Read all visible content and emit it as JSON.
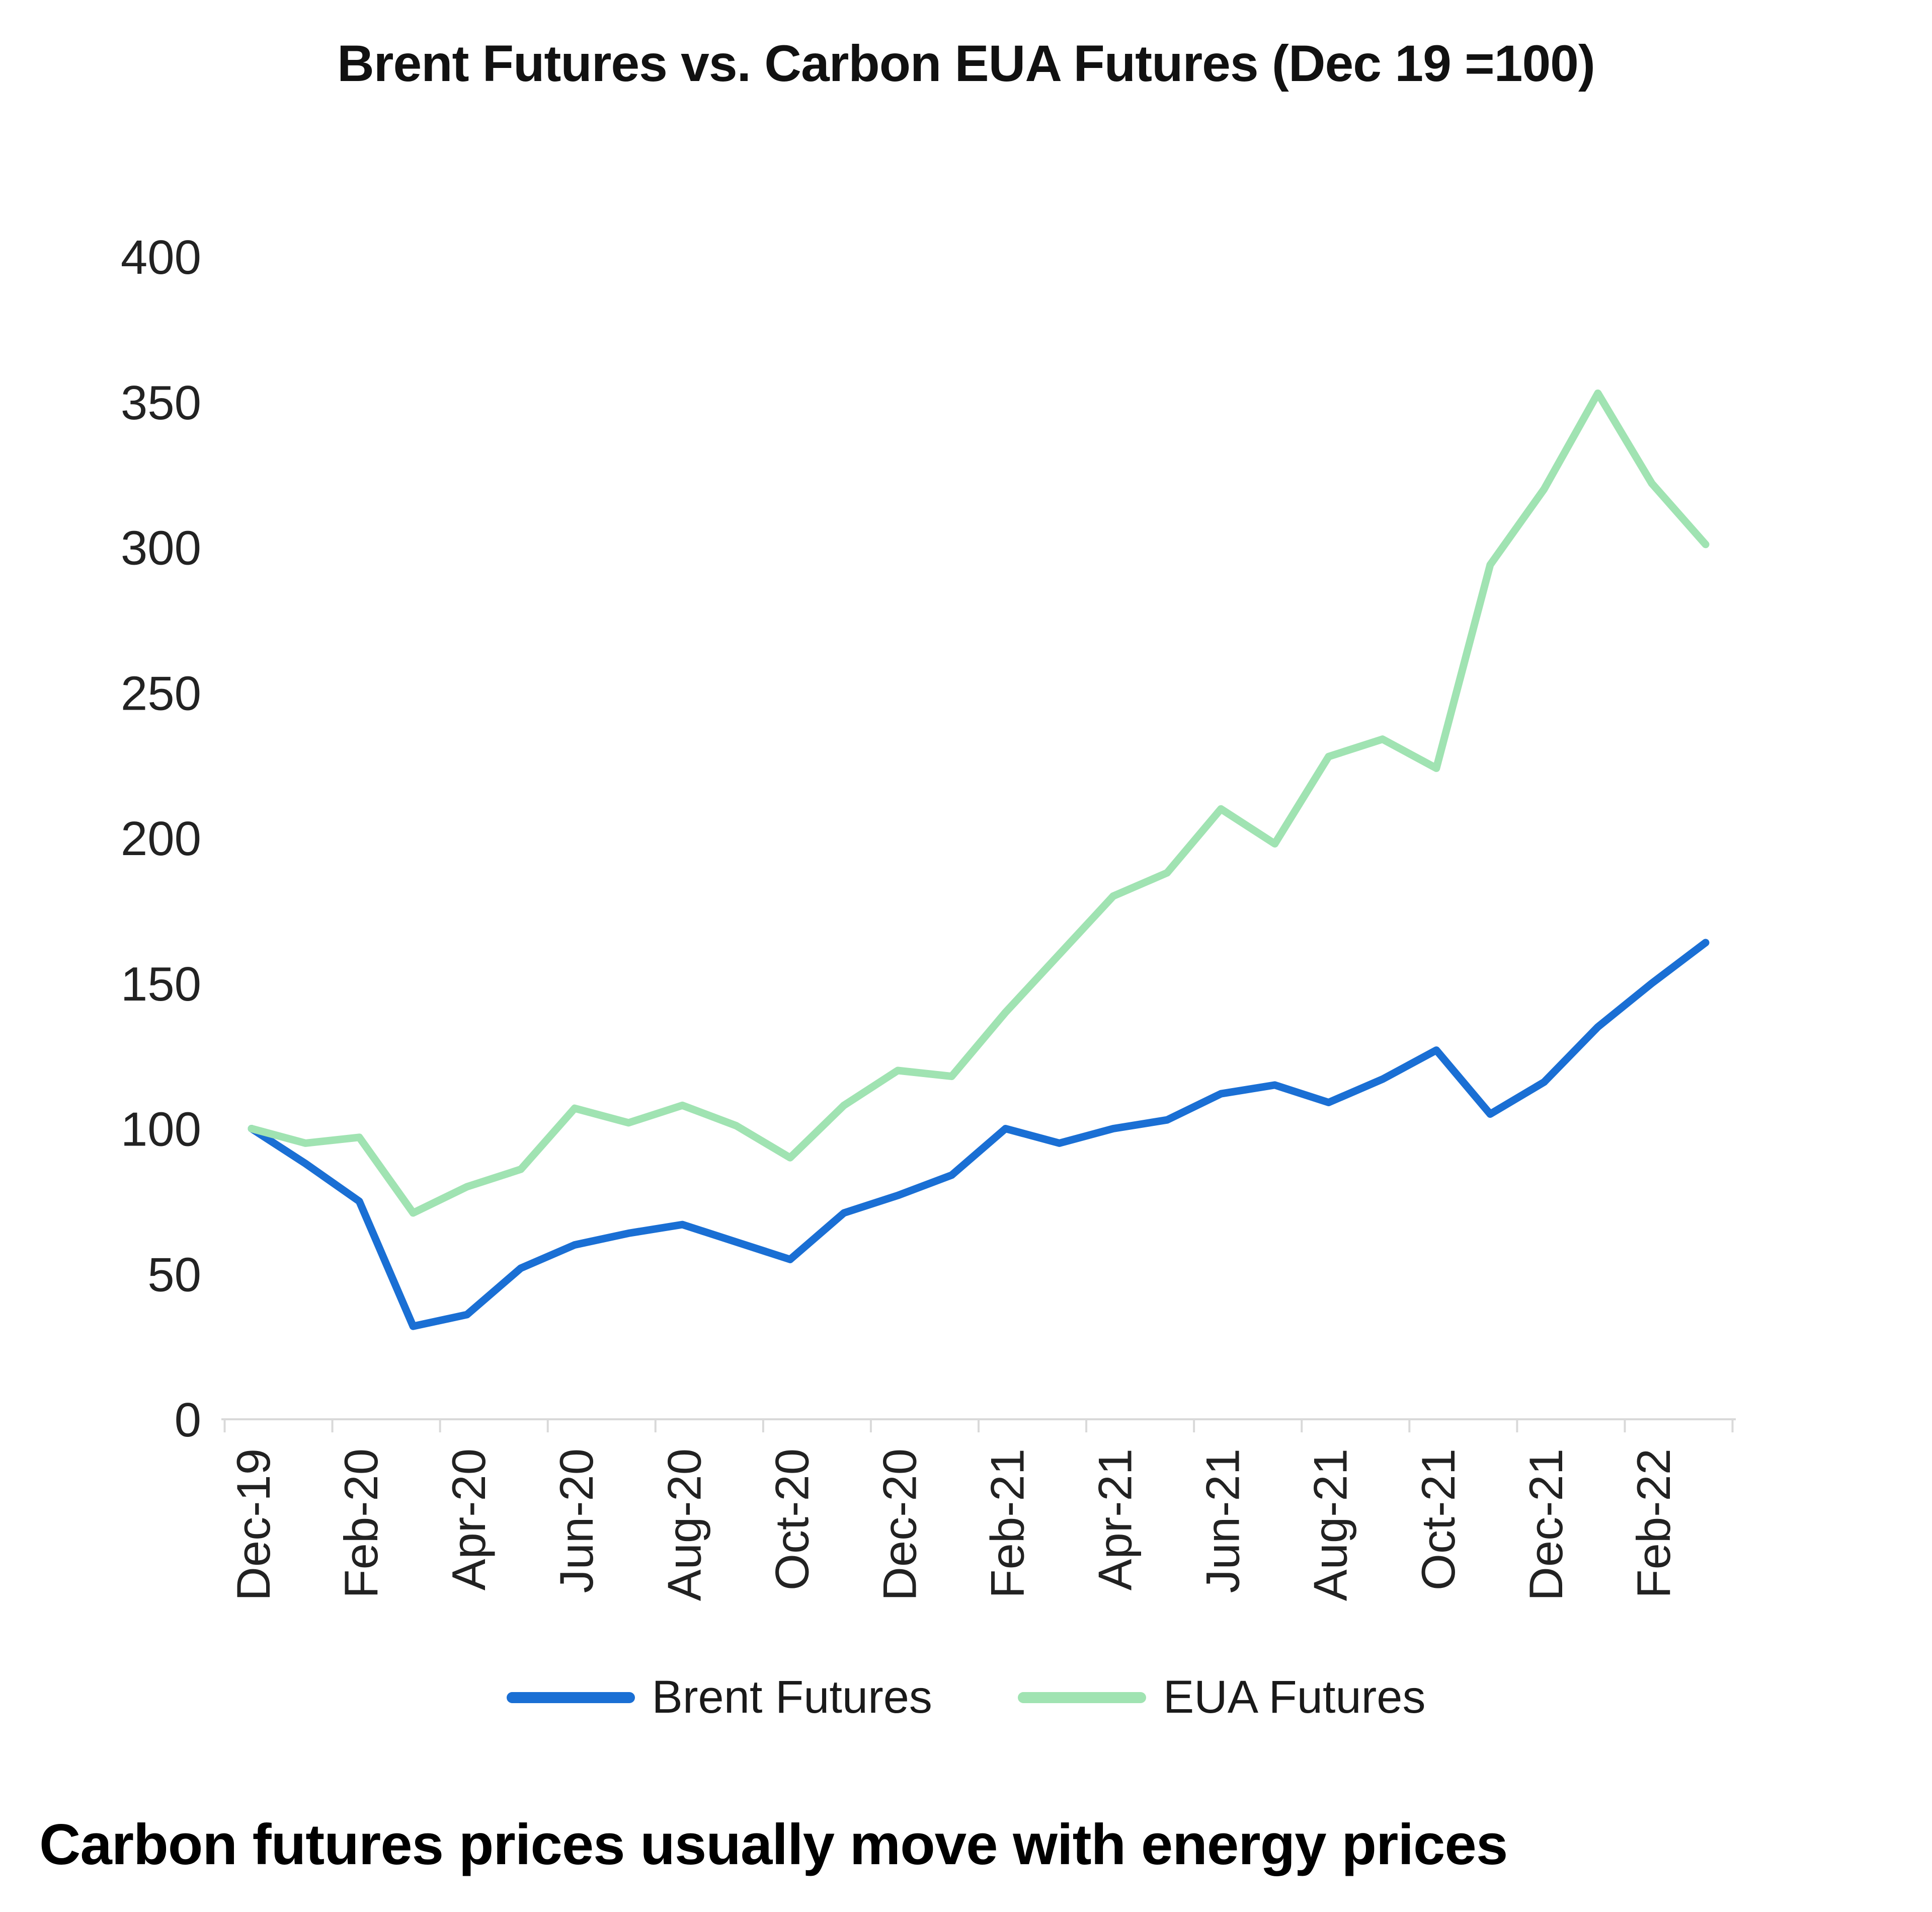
{
  "caption": "Carbon futures prices usually move with energy prices",
  "chart_data": {
    "type": "line",
    "title": "Brent Futures vs. Carbon EUA Futures (Dec 19 =100)",
    "xlabel": "",
    "ylabel": "",
    "ylim": [
      0,
      400
    ],
    "yticks": [
      0,
      50,
      100,
      150,
      200,
      250,
      300,
      350,
      400
    ],
    "grid": false,
    "legend_position": "bottom",
    "x": [
      "Dec-19",
      "Jan-20",
      "Feb-20",
      "Mar-20",
      "Apr-20",
      "May-20",
      "Jun-20",
      "Jul-20",
      "Aug-20",
      "Sep-20",
      "Oct-20",
      "Nov-20",
      "Dec-20",
      "Jan-21",
      "Feb-21",
      "Mar-21",
      "Apr-21",
      "May-21",
      "Jun-21",
      "Jul-21",
      "Aug-21",
      "Sep-21",
      "Oct-21",
      "Nov-21",
      "Dec-21",
      "Jan-22",
      "Feb-22",
      "Mar-22"
    ],
    "xtick_labels": [
      "Dec-19",
      "Feb-20",
      "Apr-20",
      "Jun-20",
      "Aug-20",
      "Oct-20",
      "Dec-20",
      "Feb-21",
      "Apr-21",
      "Jun-21",
      "Aug-21",
      "Oct-21",
      "Dec-21",
      "Feb-22"
    ],
    "series": [
      {
        "name": "Brent Futures",
        "color": "#1a6fd4",
        "values": [
          100,
          88,
          75,
          32,
          36,
          52,
          60,
          64,
          67,
          61,
          55,
          71,
          77,
          84,
          100,
          95,
          100,
          103,
          112,
          115,
          109,
          117,
          127,
          105,
          116,
          135,
          150,
          164
        ]
      },
      {
        "name": "EUA Futures",
        "color": "#a0e3b2",
        "values": [
          100,
          95,
          97,
          71,
          80,
          86,
          107,
          102,
          108,
          101,
          90,
          108,
          120,
          118,
          140,
          160,
          180,
          188,
          210,
          198,
          228,
          234,
          224,
          294,
          320,
          353,
          322,
          301
        ]
      }
    ],
    "axis_color": "#d9d9d9",
    "tick_label_color": "#222222"
  }
}
